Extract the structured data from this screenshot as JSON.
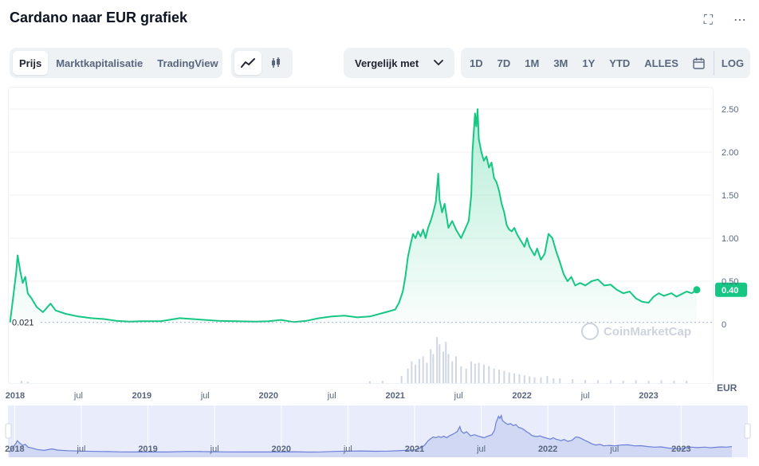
{
  "header": {
    "title": "Cardano naar EUR grafiek"
  },
  "icons": {
    "fullscreen": "fullscreen-icon",
    "more": "more-icon"
  },
  "toolbar": {
    "type_tabs": [
      {
        "label": "Prijs",
        "active": true
      },
      {
        "label": "Marktkapitalisatie",
        "active": false
      },
      {
        "label": "TradingView",
        "active": false
      }
    ],
    "chart_types": [
      {
        "name": "line-chart-icon",
        "glyph": "⟋",
        "active": true
      },
      {
        "name": "candlestick-icon",
        "glyph": "⫼",
        "active": false
      }
    ],
    "compare_label": "Vergelijk met",
    "ranges": [
      "1D",
      "7D",
      "1M",
      "3M",
      "1Y",
      "YTD",
      "ALLES"
    ],
    "calendar_icon": "calendar-icon",
    "log_label": "LOG"
  },
  "colors": {
    "line": "#16c784",
    "area_top": "#16c784",
    "grid": "#eff2f5",
    "axis_text": "#58667e",
    "nav_line": "#6b7fd7",
    "nav_fill": "#dde3f7"
  },
  "watermark": "CoinMarketCap",
  "chart_data": {
    "type": "line",
    "currency_label": "EUR",
    "start_label": "0.021",
    "last_value_label": "0.40",
    "y_ticks": [
      "0",
      "0.50",
      "1.00",
      "1.50",
      "2.00",
      "2.50"
    ],
    "ylim": [
      0,
      2.75
    ],
    "x_ticks": [
      {
        "label": "2018",
        "t": 2018.0
      },
      {
        "label": "jul",
        "t": 2018.5
      },
      {
        "label": "2019",
        "t": 2019.0
      },
      {
        "label": "jul",
        "t": 2019.5
      },
      {
        "label": "2020",
        "t": 2020.0
      },
      {
        "label": "jul",
        "t": 2020.5
      },
      {
        "label": "2021",
        "t": 2021.0
      },
      {
        "label": "jul",
        "t": 2021.5
      },
      {
        "label": "2022",
        "t": 2022.0
      },
      {
        "label": "jul",
        "t": 2022.5
      },
      {
        "label": "2023",
        "t": 2023.0
      }
    ],
    "navigator_ticks": [
      {
        "label": "2018",
        "t": 2018.0
      },
      {
        "label": "jul",
        "t": 2018.5
      },
      {
        "label": "2019",
        "t": 2019.0
      },
      {
        "label": "jul",
        "t": 2019.5
      },
      {
        "label": "2020",
        "t": 2020.0
      },
      {
        "label": "jul",
        "t": 2020.5
      },
      {
        "label": "2021",
        "t": 2021.0
      },
      {
        "label": "jul",
        "t": 2021.5
      },
      {
        "label": "2022",
        "t": 2022.0
      },
      {
        "label": "jul",
        "t": 2022.5
      },
      {
        "label": "2023",
        "t": 2023.0
      }
    ],
    "xlim": [
      2017.95,
      2023.5
    ],
    "series": [
      {
        "points": [
          [
            2017.96,
            0.02
          ],
          [
            2017.99,
            0.38
          ],
          [
            2018.01,
            0.62
          ],
          [
            2018.02,
            0.8
          ],
          [
            2018.04,
            0.62
          ],
          [
            2018.06,
            0.48
          ],
          [
            2018.08,
            0.55
          ],
          [
            2018.1,
            0.36
          ],
          [
            2018.13,
            0.3
          ],
          [
            2018.17,
            0.2
          ],
          [
            2018.22,
            0.14
          ],
          [
            2018.28,
            0.24
          ],
          [
            2018.32,
            0.16
          ],
          [
            2018.4,
            0.12
          ],
          [
            2018.5,
            0.09
          ],
          [
            2018.6,
            0.07
          ],
          [
            2018.7,
            0.06
          ],
          [
            2018.8,
            0.04
          ],
          [
            2018.9,
            0.03
          ],
          [
            2019.0,
            0.035
          ],
          [
            2019.15,
            0.035
          ],
          [
            2019.3,
            0.07
          ],
          [
            2019.4,
            0.06
          ],
          [
            2019.5,
            0.05
          ],
          [
            2019.6,
            0.04
          ],
          [
            2019.75,
            0.035
          ],
          [
            2019.9,
            0.03
          ],
          [
            2020.0,
            0.035
          ],
          [
            2020.1,
            0.05
          ],
          [
            2020.2,
            0.025
          ],
          [
            2020.3,
            0.04
          ],
          [
            2020.4,
            0.07
          ],
          [
            2020.5,
            0.09
          ],
          [
            2020.6,
            0.1
          ],
          [
            2020.7,
            0.08
          ],
          [
            2020.8,
            0.09
          ],
          [
            2020.9,
            0.13
          ],
          [
            2021.0,
            0.17
          ],
          [
            2021.03,
            0.25
          ],
          [
            2021.06,
            0.38
          ],
          [
            2021.08,
            0.55
          ],
          [
            2021.1,
            0.78
          ],
          [
            2021.12,
            0.92
          ],
          [
            2021.14,
            1.05
          ],
          [
            2021.16,
            1.0
          ],
          [
            2021.18,
            1.08
          ],
          [
            2021.2,
            1.02
          ],
          [
            2021.22,
            1.1
          ],
          [
            2021.24,
            1.0
          ],
          [
            2021.26,
            1.12
          ],
          [
            2021.28,
            1.2
          ],
          [
            2021.3,
            1.3
          ],
          [
            2021.32,
            1.42
          ],
          [
            2021.34,
            1.75
          ],
          [
            2021.35,
            1.45
          ],
          [
            2021.37,
            1.3
          ],
          [
            2021.39,
            1.4
          ],
          [
            2021.42,
            1.12
          ],
          [
            2021.45,
            1.2
          ],
          [
            2021.48,
            1.1
          ],
          [
            2021.5,
            1.05
          ],
          [
            2021.52,
            1.0
          ],
          [
            2021.55,
            1.1
          ],
          [
            2021.58,
            1.2
          ],
          [
            2021.6,
            1.5
          ],
          [
            2021.61,
            2.0
          ],
          [
            2021.63,
            2.45
          ],
          [
            2021.64,
            2.3
          ],
          [
            2021.65,
            2.5
          ],
          [
            2021.66,
            2.15
          ],
          [
            2021.68,
            2.0
          ],
          [
            2021.7,
            1.9
          ],
          [
            2021.72,
            1.95
          ],
          [
            2021.74,
            1.82
          ],
          [
            2021.76,
            1.88
          ],
          [
            2021.78,
            1.7
          ],
          [
            2021.8,
            1.65
          ],
          [
            2021.82,
            1.55
          ],
          [
            2021.84,
            1.4
          ],
          [
            2021.86,
            1.3
          ],
          [
            2021.88,
            1.15
          ],
          [
            2021.9,
            1.1
          ],
          [
            2021.92,
            1.08
          ],
          [
            2021.94,
            1.12
          ],
          [
            2021.96,
            1.05
          ],
          [
            2021.98,
            1.0
          ],
          [
            2022.0,
            0.95
          ],
          [
            2022.02,
            0.9
          ],
          [
            2022.04,
            1.0
          ],
          [
            2022.06,
            0.9
          ],
          [
            2022.08,
            0.85
          ],
          [
            2022.1,
            0.8
          ],
          [
            2022.12,
            0.88
          ],
          [
            2022.15,
            0.75
          ],
          [
            2022.18,
            0.82
          ],
          [
            2022.21,
            1.05
          ],
          [
            2022.24,
            1.0
          ],
          [
            2022.27,
            0.85
          ],
          [
            2022.3,
            0.72
          ],
          [
            2022.33,
            0.58
          ],
          [
            2022.36,
            0.5
          ],
          [
            2022.39,
            0.55
          ],
          [
            2022.42,
            0.45
          ],
          [
            2022.46,
            0.48
          ],
          [
            2022.5,
            0.45
          ],
          [
            2022.55,
            0.5
          ],
          [
            2022.6,
            0.52
          ],
          [
            2022.65,
            0.45
          ],
          [
            2022.7,
            0.46
          ],
          [
            2022.75,
            0.4
          ],
          [
            2022.8,
            0.36
          ],
          [
            2022.85,
            0.38
          ],
          [
            2022.9,
            0.3
          ],
          [
            2022.95,
            0.26
          ],
          [
            2023.0,
            0.25
          ],
          [
            2023.04,
            0.32
          ],
          [
            2023.08,
            0.36
          ],
          [
            2023.12,
            0.33
          ],
          [
            2023.18,
            0.36
          ],
          [
            2023.22,
            0.32
          ],
          [
            2023.26,
            0.35
          ],
          [
            2023.3,
            0.38
          ],
          [
            2023.34,
            0.36
          ],
          [
            2023.38,
            0.4
          ]
        ]
      }
    ],
    "volume_bars": [
      [
        2021.05,
        0.15
      ],
      [
        2021.1,
        0.3
      ],
      [
        2021.13,
        0.45
      ],
      [
        2021.16,
        0.38
      ],
      [
        2021.19,
        0.5
      ],
      [
        2021.22,
        0.55
      ],
      [
        2021.25,
        0.42
      ],
      [
        2021.28,
        0.7
      ],
      [
        2021.3,
        0.6
      ],
      [
        2021.33,
        0.95
      ],
      [
        2021.35,
        0.8
      ],
      [
        2021.38,
        0.65
      ],
      [
        2021.4,
        0.85
      ],
      [
        2021.42,
        0.6
      ],
      [
        2021.45,
        0.45
      ],
      [
        2021.48,
        0.55
      ],
      [
        2021.52,
        0.35
      ],
      [
        2021.56,
        0.3
      ],
      [
        2021.6,
        0.45
      ],
      [
        2021.63,
        0.4
      ],
      [
        2021.66,
        0.42
      ],
      [
        2021.7,
        0.38
      ],
      [
        2021.74,
        0.35
      ],
      [
        2021.78,
        0.3
      ],
      [
        2021.82,
        0.28
      ],
      [
        2021.86,
        0.25
      ],
      [
        2021.9,
        0.22
      ],
      [
        2021.94,
        0.2
      ],
      [
        2021.98,
        0.18
      ],
      [
        2022.02,
        0.16
      ],
      [
        2022.06,
        0.14
      ],
      [
        2022.1,
        0.12
      ],
      [
        2022.15,
        0.12
      ],
      [
        2022.2,
        0.15
      ],
      [
        2022.25,
        0.1
      ],
      [
        2022.3,
        0.1
      ],
      [
        2022.4,
        0.08
      ],
      [
        2022.5,
        0.07
      ],
      [
        2022.6,
        0.06
      ],
      [
        2022.7,
        0.06
      ],
      [
        2022.8,
        0.05
      ],
      [
        2022.9,
        0.06
      ],
      [
        2023.0,
        0.05
      ],
      [
        2023.1,
        0.06
      ],
      [
        2023.2,
        0.05
      ],
      [
        2023.3,
        0.05
      ],
      [
        2020.8,
        0.04
      ],
      [
        2020.9,
        0.05
      ],
      [
        2018.05,
        0.05
      ],
      [
        2018.1,
        0.03
      ]
    ]
  }
}
